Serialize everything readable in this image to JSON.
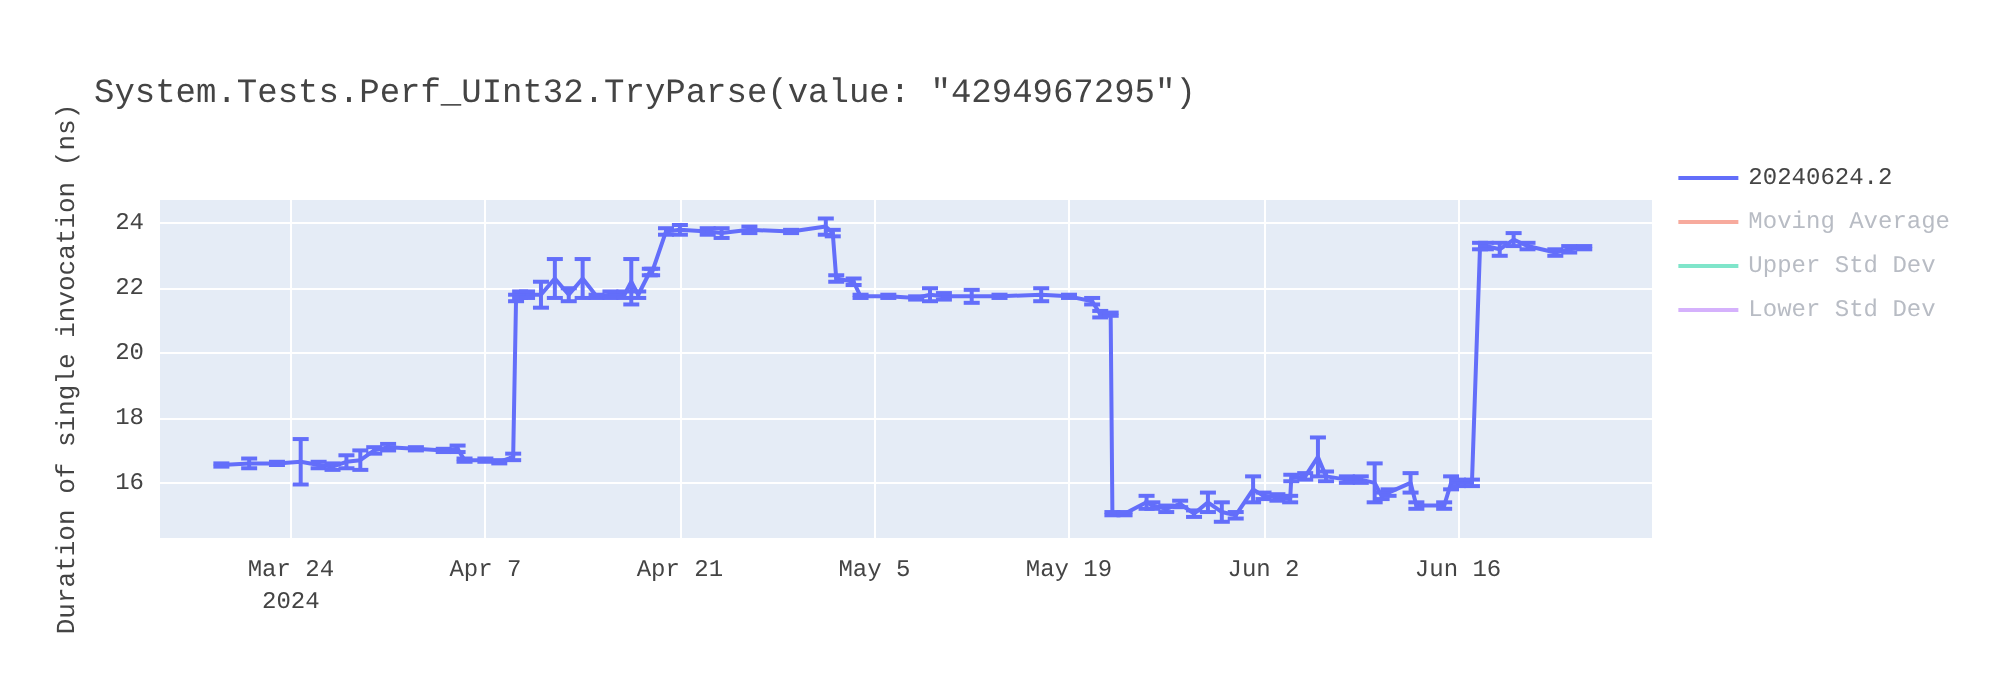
{
  "chart_data": {
    "type": "line",
    "title": "System.Tests.Perf_UInt32.TryParse(value: \"4294967295\")",
    "ylabel": "Duration of single invocation (ns)",
    "xlim": [
      "2024-03-14T14:00",
      "2024-06-29T23:00"
    ],
    "xticks": [
      {
        "value": "2024-03-24",
        "label": "Mar 24\n2024"
      },
      {
        "value": "2024-04-07",
        "label": "Apr 7"
      },
      {
        "value": "2024-04-21",
        "label": "Apr 21"
      },
      {
        "value": "2024-05-05",
        "label": "May 5"
      },
      {
        "value": "2024-05-19",
        "label": "May 19"
      },
      {
        "value": "2024-06-02",
        "label": "Jun 2"
      },
      {
        "value": "2024-06-16",
        "label": "Jun 16"
      }
    ],
    "ylim": [
      14.3,
      24.72
    ],
    "yticks": [
      16,
      18,
      20,
      22,
      24
    ],
    "grid": true,
    "legend": "top right",
    "marker": "none",
    "line_style": "solid",
    "series": [
      {
        "name": "20240624.2",
        "color": "#636efa",
        "x": [
          "2024-03-19",
          "2024-03-21",
          "2024-03-23",
          "2024-03-24T17:00",
          "2024-03-26",
          "2024-03-27",
          "2024-03-28",
          "2024-03-29",
          "2024-03-30",
          "2024-03-31",
          "2024-04-02",
          "2024-04-04",
          "2024-04-05",
          "2024-04-05T12:00",
          "2024-04-07",
          "2024-04-08",
          "2024-04-09",
          "2024-04-09T05:00",
          "2024-04-09T12:00",
          "2024-04-10",
          "2024-04-11",
          "2024-04-12",
          "2024-04-13",
          "2024-04-14",
          "2024-04-15",
          "2024-04-16",
          "2024-04-17",
          "2024-04-17T12:00",
          "2024-04-18",
          "2024-04-18T20:00",
          "2024-04-19",
          "2024-04-20",
          "2024-04-21",
          "2024-04-23",
          "2024-04-24",
          "2024-04-26",
          "2024-04-29",
          "2024-05-01T12:00",
          "2024-05-02",
          "2024-05-02T06:00",
          "2024-05-03T12:00",
          "2024-05-04",
          "2024-05-06",
          "2024-05-08",
          "2024-05-09",
          "2024-05-10",
          "2024-05-12",
          "2024-05-14",
          "2024-05-17",
          "2024-05-19",
          "2024-05-20T16:00",
          "2024-05-21T06:00",
          "2024-05-22",
          "2024-05-22T03:00",
          "2024-05-23",
          "2024-05-24T14:00",
          "2024-05-25",
          "2024-05-26",
          "2024-05-27",
          "2024-05-28",
          "2024-05-29",
          "2024-05-30",
          "2024-05-31",
          "2024-06-01T06:00",
          "2024-06-02",
          "2024-06-03",
          "2024-06-03T22:00",
          "2024-06-04",
          "2024-06-05",
          "2024-06-05T22:00",
          "2024-06-06T12:00",
          "2024-06-08",
          "2024-06-09",
          "2024-06-10",
          "2024-06-10T12:00",
          "2024-06-11",
          "2024-06-12T14:00",
          "2024-06-13",
          "2024-06-15",
          "2024-06-15T12:00",
          "2024-06-16",
          "2024-06-17",
          "2024-06-17T14:00",
          "2024-06-18",
          "2024-06-19",
          "2024-06-20",
          "2024-06-21",
          "2024-06-23",
          "2024-06-24",
          "2024-06-25T02:00"
        ],
        "values": [
          16.55,
          16.6,
          16.6,
          16.65,
          16.55,
          16.5,
          16.65,
          16.7,
          17.0,
          17.1,
          17.05,
          17.0,
          17.05,
          16.7,
          16.7,
          16.65,
          16.8,
          21.7,
          21.8,
          21.8,
          21.8,
          22.3,
          21.8,
          22.3,
          21.75,
          21.8,
          21.8,
          22.2,
          21.8,
          22.5,
          22.5,
          23.75,
          23.8,
          23.75,
          23.7,
          23.8,
          23.75,
          23.9,
          23.7,
          22.3,
          22.2,
          21.75,
          21.75,
          21.7,
          21.8,
          21.75,
          21.75,
          21.75,
          21.8,
          21.75,
          21.6,
          21.2,
          21.2,
          15.05,
          15.05,
          15.4,
          15.3,
          15.2,
          15.35,
          15.05,
          15.4,
          15.1,
          15.0,
          15.8,
          15.6,
          15.55,
          15.5,
          16.15,
          16.2,
          16.8,
          16.2,
          16.1,
          16.1,
          16.0,
          15.6,
          15.7,
          16.0,
          15.3,
          15.3,
          16.0,
          16.0,
          16.0,
          23.3,
          23.3,
          23.2,
          23.5,
          23.3,
          23.1,
          23.2,
          23.25
        ],
        "errors": [
          0.05,
          0.15,
          0.05,
          0.7,
          0.1,
          0.1,
          0.2,
          0.3,
          0.1,
          0.1,
          0.05,
          0.05,
          0.1,
          0.05,
          0.05,
          0.05,
          0.1,
          0.1,
          0.1,
          0.1,
          0.4,
          0.6,
          0.2,
          0.6,
          0.05,
          0.1,
          0.1,
          0.7,
          0.1,
          0.1,
          0.1,
          0.1,
          0.15,
          0.1,
          0.15,
          0.1,
          0.05,
          0.25,
          0.1,
          0.1,
          0.1,
          0.05,
          0.05,
          0.05,
          0.2,
          0.1,
          0.2,
          0.05,
          0.2,
          0.05,
          0.1,
          0.1,
          0.05,
          0.05,
          0.05,
          0.2,
          0.1,
          0.1,
          0.1,
          0.1,
          0.3,
          0.3,
          0.1,
          0.4,
          0.1,
          0.1,
          0.1,
          0.1,
          0.1,
          0.6,
          0.15,
          0.1,
          0.1,
          0.6,
          0.1,
          0.1,
          0.3,
          0.1,
          0.1,
          0.2,
          0.1,
          0.1,
          0.1,
          0.1,
          0.2,
          0.2,
          0.1,
          0.1,
          0.1,
          0.05
        ]
      },
      {
        "name": "Moving Average",
        "color": "#ef553b"
      },
      {
        "name": "Upper Std Dev",
        "color": "#00cc96"
      },
      {
        "name": "Lower Std Dev",
        "color": "#ab63fa"
      }
    ]
  }
}
